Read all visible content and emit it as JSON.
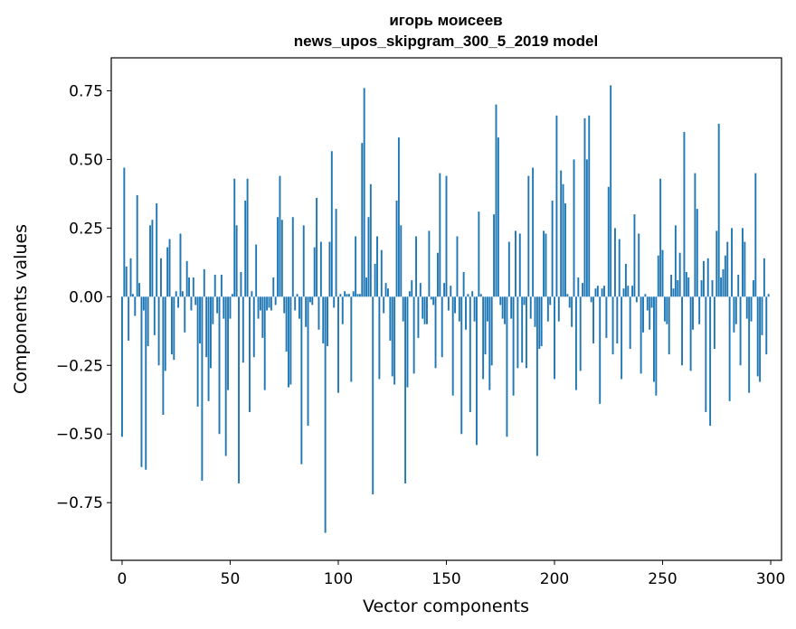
{
  "chart_data": {
    "type": "bar",
    "title": "игорь моисеев",
    "subtitle": "news_upos_skipgram_300_5_2019 model",
    "xlabel": "Vector components",
    "ylabel": "Components values",
    "xlim": [
      -5,
      305
    ],
    "ylim": [
      -0.96,
      0.87
    ],
    "xticks": [
      0,
      50,
      100,
      150,
      200,
      250,
      300
    ],
    "yticks": [
      -0.75,
      -0.5,
      -0.25,
      0.0,
      0.25,
      0.5,
      0.75
    ],
    "xtick_labels": [
      "0",
      "50",
      "100",
      "150",
      "200",
      "250",
      "300"
    ],
    "ytick_labels": [
      "−0.75",
      "−0.50",
      "−0.25",
      "0.00",
      "0.25",
      "0.50",
      "0.75"
    ],
    "bar_color": "#1f77b4",
    "grid": false,
    "x": [
      0,
      1,
      2,
      3,
      4,
      5,
      6,
      7,
      8,
      9,
      10,
      11,
      12,
      13,
      14,
      15,
      16,
      17,
      18,
      19,
      20,
      21,
      22,
      23,
      24,
      25,
      26,
      27,
      28,
      29,
      30,
      31,
      32,
      33,
      34,
      35,
      36,
      37,
      38,
      39,
      40,
      41,
      42,
      43,
      44,
      45,
      46,
      47,
      48,
      49,
      50,
      51,
      52,
      53,
      54,
      55,
      56,
      57,
      58,
      59,
      60,
      61,
      62,
      63,
      64,
      65,
      66,
      67,
      68,
      69,
      70,
      71,
      72,
      73,
      74,
      75,
      76,
      77,
      78,
      79,
      80,
      81,
      82,
      83,
      84,
      85,
      86,
      87,
      88,
      89,
      90,
      91,
      92,
      93,
      94,
      95,
      96,
      97,
      98,
      99,
      100,
      101,
      102,
      103,
      104,
      105,
      106,
      107,
      108,
      109,
      110,
      111,
      112,
      113,
      114,
      115,
      116,
      117,
      118,
      119,
      120,
      121,
      122,
      123,
      124,
      125,
      126,
      127,
      128,
      129,
      130,
      131,
      132,
      133,
      134,
      135,
      136,
      137,
      138,
      139,
      140,
      141,
      142,
      143,
      144,
      145,
      146,
      147,
      148,
      149,
      150,
      151,
      152,
      153,
      154,
      155,
      156,
      157,
      158,
      159,
      160,
      161,
      162,
      163,
      164,
      165,
      166,
      167,
      168,
      169,
      170,
      171,
      172,
      173,
      174,
      175,
      176,
      177,
      178,
      179,
      180,
      181,
      182,
      183,
      184,
      185,
      186,
      187,
      188,
      189,
      190,
      191,
      192,
      193,
      194,
      195,
      196,
      197,
      198,
      199,
      200,
      201,
      202,
      203,
      204,
      205,
      206,
      207,
      208,
      209,
      210,
      211,
      212,
      213,
      214,
      215,
      216,
      217,
      218,
      219,
      220,
      221,
      222,
      223,
      224,
      225,
      226,
      227,
      228,
      229,
      230,
      231,
      232,
      233,
      234,
      235,
      236,
      237,
      238,
      239,
      240,
      241,
      242,
      243,
      244,
      245,
      246,
      247,
      248,
      249,
      250,
      251,
      252,
      253,
      254,
      255,
      256,
      257,
      258,
      259,
      260,
      261,
      262,
      263,
      264,
      265,
      266,
      267,
      268,
      269,
      270,
      271,
      272,
      273,
      274,
      275,
      276,
      277,
      278,
      279,
      280,
      281,
      282,
      283,
      284,
      285,
      286,
      287,
      288,
      289,
      290,
      291,
      292,
      293,
      294,
      295,
      296,
      297,
      298,
      299
    ],
    "values": [
      -0.51,
      0.47,
      0.11,
      -0.16,
      0.14,
      0.01,
      -0.07,
      0.37,
      0.05,
      -0.62,
      -0.05,
      -0.63,
      -0.18,
      0.26,
      0.28,
      -0.14,
      0.34,
      -0.25,
      0.14,
      -0.43,
      -0.27,
      0.18,
      0.21,
      -0.21,
      -0.23,
      0.02,
      -0.04,
      0.23,
      0.02,
      -0.13,
      0.13,
      0.07,
      -0.05,
      0.07,
      -0.03,
      -0.4,
      -0.17,
      -0.67,
      0.1,
      -0.22,
      -0.38,
      -0.26,
      -0.1,
      0.08,
      -0.06,
      -0.5,
      0.08,
      -0.08,
      -0.58,
      -0.34,
      -0.08,
      0.01,
      0.43,
      0.26,
      -0.68,
      0.09,
      -0.24,
      0.35,
      0.43,
      -0.42,
      0.02,
      -0.22,
      0.19,
      -0.08,
      -0.05,
      -0.15,
      -0.34,
      -0.05,
      -0.04,
      -0.05,
      0.07,
      -0.03,
      0.29,
      0.44,
      0.28,
      -0.06,
      -0.2,
      -0.33,
      -0.32,
      0.29,
      -0.05,
      0.01,
      -0.08,
      -0.61,
      0.26,
      -0.11,
      -0.47,
      -0.02,
      -0.03,
      0.18,
      0.36,
      -0.12,
      0.2,
      -0.17,
      -0.86,
      -0.18,
      0.2,
      0.53,
      -0.04,
      0.32,
      -0.35,
      0.01,
      -0.1,
      0.02,
      0.01,
      0.01,
      -0.31,
      0.02,
      0.22,
      0.01,
      0.01,
      0.56,
      0.76,
      0.07,
      0.29,
      0.41,
      -0.72,
      0.12,
      0.22,
      -0.3,
      0.17,
      -0.06,
      0.05,
      0.03,
      -0.16,
      -0.29,
      -0.32,
      0.35,
      0.58,
      0.26,
      -0.09,
      -0.68,
      -0.33,
      0.02,
      0.06,
      -0.28,
      0.22,
      -0.15,
      0.05,
      -0.08,
      -0.1,
      -0.1,
      0.24,
      -0.01,
      -0.03,
      -0.26,
      0.16,
      0.45,
      -0.22,
      0.05,
      0.44,
      -0.05,
      0.04,
      -0.36,
      -0.06,
      0.22,
      -0.09,
      -0.5,
      0.09,
      -0.12,
      0.01,
      -0.42,
      0.02,
      -0.09,
      -0.54,
      0.31,
      0.01,
      -0.3,
      -0.21,
      -0.09,
      -0.34,
      -0.25,
      0.3,
      0.7,
      0.58,
      -0.03,
      -0.08,
      -0.1,
      -0.51,
      0.2,
      -0.08,
      -0.36,
      0.24,
      -0.26,
      0.23,
      -0.24,
      -0.03,
      -0.26,
      0.44,
      -0.08,
      0.47,
      -0.11,
      -0.58,
      -0.19,
      -0.18,
      0.24,
      0.23,
      -0.09,
      -0.03,
      0.35,
      -0.3,
      0.66,
      -0.09,
      0.46,
      0.41,
      0.34,
      0.01,
      -0.04,
      -0.11,
      0.5,
      -0.34,
      0.07,
      -0.27,
      0.05,
      0.65,
      0.5,
      0.66,
      -0.02,
      -0.17,
      0.03,
      0.04,
      -0.39,
      0.03,
      0.04,
      -0.15,
      0.4,
      0.77,
      -0.21,
      0.25,
      -0.17,
      0.21,
      -0.3,
      0.03,
      0.12,
      0.04,
      -0.19,
      0.04,
      0.3,
      -0.02,
      0.23,
      -0.28,
      -0.13,
      0.01,
      -0.05,
      -0.12,
      -0.04,
      -0.31,
      -0.36,
      0.15,
      0.43,
      0.17,
      -0.09,
      -0.1,
      -0.21,
      0.08,
      0.03,
      0.26,
      0.06,
      0.16,
      -0.25,
      0.6,
      0.09,
      0.07,
      -0.27,
      -0.12,
      0.45,
      0.32,
      -0.1,
      0.06,
      0.13,
      -0.42,
      0.14,
      -0.47,
      0.06,
      -0.19,
      0.24,
      0.63,
      0.07,
      0.1,
      0.15,
      0.2,
      -0.38,
      0.25,
      -0.13,
      -0.1,
      0.08,
      -0.25,
      0.25,
      0.2,
      -0.08,
      -0.35,
      -0.09,
      0.06,
      0.45,
      -0.29,
      -0.31,
      -0.14,
      0.14,
      -0.21,
      0.01
    ]
  }
}
